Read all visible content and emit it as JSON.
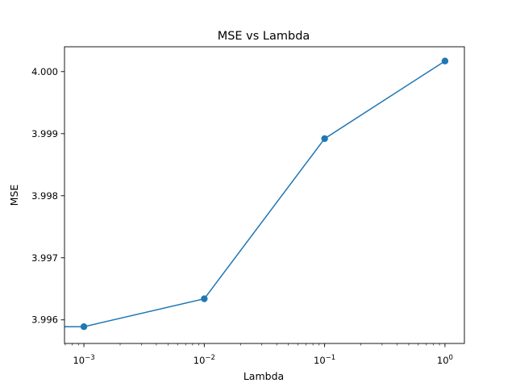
{
  "chart_data": {
    "type": "line",
    "title": "MSE vs Lambda",
    "xlabel": "Lambda",
    "ylabel": "MSE",
    "xscale": "log",
    "xlim": [
      0.00069,
      1.45
    ],
    "ylim": [
      3.99562,
      4.0004
    ],
    "x_ticks": [
      {
        "value": 0.001,
        "base": "10",
        "exp": "−3"
      },
      {
        "value": 0.01,
        "base": "10",
        "exp": "−2"
      },
      {
        "value": 0.1,
        "base": "10",
        "exp": "−1"
      },
      {
        "value": 1,
        "base": "10",
        "exp": "0"
      }
    ],
    "y_ticks": [
      {
        "value": 3.996,
        "label": "3.996"
      },
      {
        "value": 3.997,
        "label": "3.997"
      },
      {
        "value": 3.998,
        "label": "3.998"
      },
      {
        "value": 3.999,
        "label": "3.999"
      },
      {
        "value": 4.0,
        "label": "4.000"
      }
    ],
    "grid": false,
    "legend": "none",
    "series": [
      {
        "color": "#1f77b4",
        "marker": "circle",
        "x": [
          0.001,
          0.01,
          0.1,
          1
        ],
        "y": [
          3.99589,
          3.99634,
          3.99892,
          4.00017
        ]
      }
    ],
    "extra_segment": {
      "color": "#1f77b4",
      "x": [
        0.00069,
        0.001
      ],
      "y": [
        3.99589,
        3.99589
      ]
    }
  }
}
